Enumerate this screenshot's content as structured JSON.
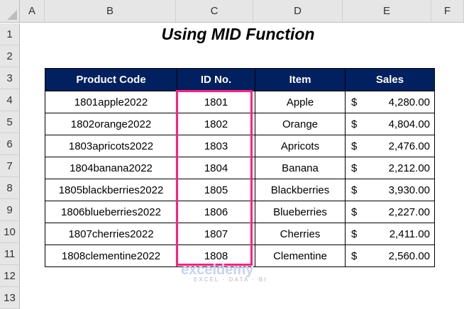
{
  "columns": [
    "A",
    "B",
    "C",
    "D",
    "E",
    "F"
  ],
  "rows": [
    "1",
    "2",
    "3",
    "4",
    "5",
    "6",
    "7",
    "8",
    "9",
    "10",
    "11",
    "12",
    "13"
  ],
  "title": "Using MID Function",
  "table": {
    "headers": [
      "Product Code",
      "ID No.",
      "Item",
      "Sales"
    ],
    "rows": [
      [
        "1801apple2022",
        "1801",
        "Apple",
        "$",
        "4,280.00"
      ],
      [
        "1802orange2022",
        "1802",
        "Orange",
        "$",
        "4,804.00"
      ],
      [
        "1803apricots2022",
        "1803",
        "Apricots",
        "$",
        "2,476.00"
      ],
      [
        "1804banana2022",
        "1804",
        "Banana",
        "$",
        "2,212.00"
      ],
      [
        "1805blackberries2022",
        "1805",
        "Blackberries",
        "$",
        "3,930.00"
      ],
      [
        "1806blueberries2022",
        "1806",
        "Blueberries",
        "$",
        "2,227.00"
      ],
      [
        "1807cherries2022",
        "1807",
        "Cherries",
        "$",
        "2,411.00"
      ],
      [
        "1808clementine2022",
        "1808",
        "Clementine",
        "$",
        "2,560.00"
      ]
    ]
  },
  "highlight_color": "#ff1f7f",
  "header_color": "#002060",
  "watermark": {
    "name": "exceldemy",
    "tagline": "EXCEL · DATA · BI"
  }
}
